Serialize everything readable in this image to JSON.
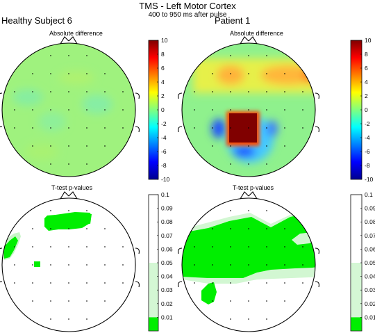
{
  "title": "TMS - Left Motor Cortex",
  "subtitle": "400 to 950 ms after pulse",
  "subjects": [
    {
      "name": "Healthy Subject 6"
    },
    {
      "name": "Patient 1"
    }
  ],
  "panel_titles": {
    "absolute_difference": "Absolute difference",
    "pvalues": "T-test p-values"
  },
  "colors": {
    "green_sig": "#00ee00",
    "light_green": "#d4f7d4",
    "background_absdiff": "#9ff27e"
  },
  "chart_data": [
    {
      "type": "heatmap",
      "subtitle": "Absolute difference",
      "subject": "Healthy Subject 6",
      "colorbar": {
        "ticks": [
          "10",
          "8",
          "6",
          "4",
          "2",
          "0",
          "-2",
          "-4",
          "-6",
          "-8",
          "-10"
        ],
        "range": [
          -10,
          10
        ],
        "colormap": "jet"
      },
      "value_estimates": {
        "overall": 0.5,
        "min": -0.5,
        "max": 1.5
      }
    },
    {
      "type": "heatmap",
      "subtitle": "Absolute difference",
      "subject": "Patient 1",
      "colorbar": {
        "ticks": [
          "10",
          "8",
          "6",
          "4",
          "2",
          "0",
          "-2",
          "-4",
          "-6",
          "-8",
          "-10"
        ],
        "range": [
          -10,
          10
        ],
        "colormap": "jet"
      },
      "value_estimates": {
        "background": 1,
        "frontal_band": 4,
        "left_central_peak": 10,
        "peak_flanks": -4
      }
    },
    {
      "type": "heatmap",
      "subtitle": "T-test p-values",
      "subject": "Healthy Subject 6",
      "colorbar": {
        "ticks": [
          "0.1",
          "0.09",
          "0.08",
          "0.07",
          "0.06",
          "0.05",
          "0.04",
          "0.03",
          "0.02",
          "0.01"
        ],
        "range": [
          0,
          0.1
        ],
        "levels": [
          0.01,
          0.05
        ]
      }
    },
    {
      "type": "heatmap",
      "subtitle": "T-test p-values",
      "subject": "Patient 1",
      "colorbar": {
        "ticks": [
          "0.1",
          "0.09",
          "0.08",
          "0.07",
          "0.06",
          "0.05",
          "0.04",
          "0.03",
          "0.02",
          "0.01"
        ],
        "range": [
          0,
          0.1
        ],
        "levels": [
          0.01,
          0.05
        ]
      }
    }
  ]
}
